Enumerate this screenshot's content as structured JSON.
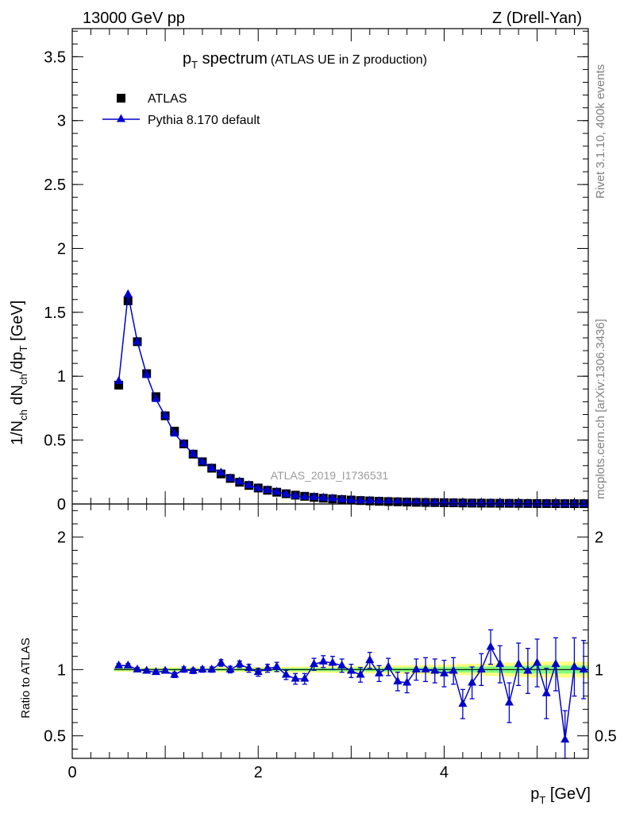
{
  "header": {
    "left": "13000 GeV pp",
    "right": "Z (Drell-Yan)"
  },
  "title": {
    "main_p": "p",
    "main_sub": "T",
    "main_rest": " spectrum",
    "annotation": "(ATLAS UE in Z production)"
  },
  "ylabel": {
    "a": "1/N",
    "a_sub": "ch",
    "b": " dN",
    "b_sub": "ch",
    "c": "/dp",
    "c_sub": "T",
    "d": " [GeV]"
  },
  "xlabel": {
    "p": "p",
    "sub": "T",
    "rest": " [GeV]"
  },
  "ratio_ylabel": "Ratio to ATLAS",
  "analysis_id": "ATLAS_2019_I1736531",
  "side_texts": {
    "rivet": "Rivet 3.1.10,  400k events",
    "mcplots": "mcplots.cern.ch [arXiv:1306.3436]"
  },
  "colors": {
    "data": "#000000",
    "mc": "#0000cc",
    "band_inner": "#7fff7f",
    "band_outer": "#ffff7f",
    "analysis_id": "#9a9a9a",
    "side_text": "#808080"
  },
  "chart_data": [
    {
      "type": "scatter",
      "panel": "main",
      "xlim": [
        0,
        5.55
      ],
      "ylim": [
        0,
        3.72
      ],
      "xticks": [
        "0",
        "2",
        "4"
      ],
      "yticks": [
        "0",
        "0.5",
        "1",
        "1.5",
        "2",
        "2.5",
        "3",
        "3.5"
      ],
      "legend": {
        "placement": "top-left",
        "entries": [
          "ATLAS",
          "Pythia 8.170 default"
        ]
      },
      "x": [
        0.5,
        0.6,
        0.7,
        0.8,
        0.9,
        1.0,
        1.1,
        1.2,
        1.3,
        1.4,
        1.5,
        1.6,
        1.7,
        1.8,
        1.9,
        2.0,
        2.1,
        2.2,
        2.3,
        2.4,
        2.5,
        2.6,
        2.7,
        2.8,
        2.9,
        3.0,
        3.1,
        3.2,
        3.3,
        3.4,
        3.5,
        3.6,
        3.7,
        3.8,
        3.9,
        4.0,
        4.1,
        4.2,
        4.3,
        4.4,
        4.5,
        4.6,
        4.7,
        4.8,
        4.9,
        5.0,
        5.1,
        5.2,
        5.3,
        5.4,
        5.5
      ],
      "series": [
        {
          "name": "ATLAS",
          "marker": "square",
          "values": [
            0.93,
            1.59,
            1.27,
            1.02,
            0.84,
            0.69,
            0.57,
            0.47,
            0.39,
            0.33,
            0.28,
            0.235,
            0.2,
            0.17,
            0.145,
            0.125,
            0.107,
            0.092,
            0.08,
            0.069,
            0.06,
            0.052,
            0.045,
            0.04,
            0.035,
            0.031,
            0.027,
            0.024,
            0.021,
            0.019,
            0.017,
            0.015,
            0.013,
            0.012,
            0.011,
            0.01,
            0.009,
            0.008,
            0.007,
            0.0065,
            0.006,
            0.0055,
            0.005,
            0.0045,
            0.004,
            0.0037,
            0.0034,
            0.0031,
            0.0028,
            0.0026,
            0.0024
          ]
        },
        {
          "name": "Pythia 8.170 default",
          "marker": "triangle",
          "values": [
            0.96,
            1.64,
            1.27,
            1.01,
            0.82,
            0.69,
            0.55,
            0.47,
            0.39,
            0.33,
            0.28,
            0.245,
            0.2,
            0.175,
            0.146,
            0.123,
            0.108,
            0.094,
            0.077,
            0.064,
            0.056,
            0.054,
            0.048,
            0.042,
            0.036,
            0.03,
            0.026,
            0.025,
            0.02,
            0.019,
            0.016,
            0.014,
            0.013,
            0.012,
            0.011,
            0.01,
            0.0089,
            0.0059,
            0.0063,
            0.0065,
            0.007,
            0.0057,
            0.0037,
            0.0047,
            0.004,
            0.0039,
            0.0028,
            0.0032,
            0.0014,
            0.0027,
            0.0024
          ]
        }
      ]
    },
    {
      "type": "scatter",
      "panel": "ratio",
      "ylabel": "Ratio to ATLAS",
      "xlabel": "p_T [GeV]",
      "xlim": [
        0,
        5.55
      ],
      "ylim": [
        0.33,
        2.25
      ],
      "xticks": [
        "0",
        "2",
        "4"
      ],
      "yticks": [
        "0.5",
        "1",
        "2"
      ],
      "x": [
        0.5,
        0.6,
        0.7,
        0.8,
        0.9,
        1.0,
        1.1,
        1.2,
        1.3,
        1.4,
        1.5,
        1.6,
        1.7,
        1.8,
        1.9,
        2.0,
        2.1,
        2.2,
        2.3,
        2.4,
        2.5,
        2.6,
        2.7,
        2.8,
        2.9,
        3.0,
        3.1,
        3.2,
        3.3,
        3.4,
        3.5,
        3.6,
        3.7,
        3.8,
        3.9,
        4.0,
        4.1,
        4.2,
        4.3,
        4.4,
        4.5,
        4.6,
        4.7,
        4.8,
        4.9,
        5.0,
        5.1,
        5.2,
        5.3,
        5.4,
        5.5
      ],
      "series": [
        {
          "name": "Pythia 8.170 default",
          "marker": "triangle",
          "values": [
            1.03,
            1.03,
            1.0,
            0.99,
            0.98,
            0.99,
            0.96,
            1.0,
            0.99,
            1.0,
            1.0,
            1.05,
            1.0,
            1.04,
            1.01,
            0.98,
            1.01,
            1.02,
            0.96,
            0.93,
            0.93,
            1.04,
            1.06,
            1.05,
            1.03,
            0.99,
            0.96,
            1.07,
            0.97,
            1.02,
            0.91,
            0.9,
            1.0,
            1.0,
            0.99,
            0.97,
            0.99,
            0.74,
            0.9,
            1.0,
            1.17,
            1.04,
            0.75,
            1.04,
            0.99,
            1.05,
            0.82,
            1.04,
            0.47,
            1.02,
            1.0
          ],
          "errors": [
            0.015,
            0.015,
            0.015,
            0.015,
            0.015,
            0.015,
            0.02,
            0.02,
            0.02,
            0.02,
            0.02,
            0.025,
            0.025,
            0.025,
            0.03,
            0.03,
            0.03,
            0.035,
            0.035,
            0.04,
            0.04,
            0.045,
            0.045,
            0.05,
            0.05,
            0.05,
            0.055,
            0.06,
            0.06,
            0.065,
            0.07,
            0.075,
            0.08,
            0.09,
            0.09,
            0.1,
            0.1,
            0.11,
            0.12,
            0.12,
            0.13,
            0.14,
            0.15,
            0.16,
            0.17,
            0.18,
            0.19,
            0.2,
            0.22,
            0.22,
            0.22
          ]
        }
      ]
    }
  ]
}
